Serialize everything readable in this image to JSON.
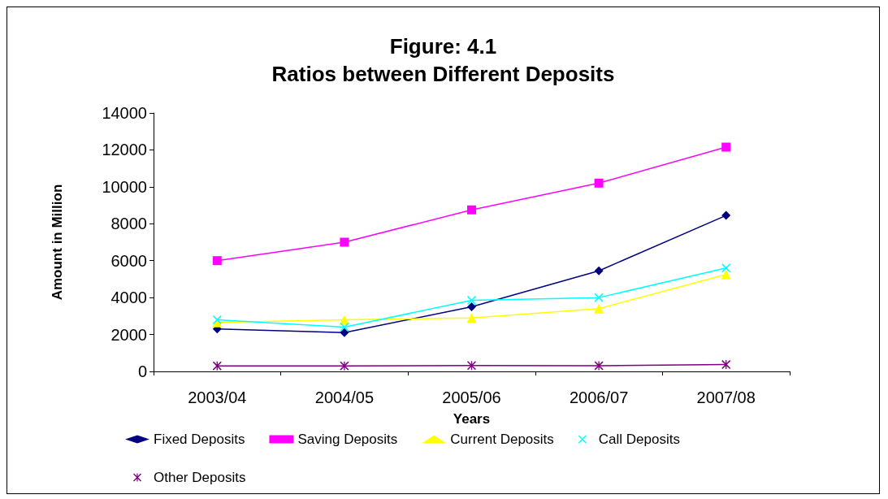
{
  "chart_data": {
    "type": "line",
    "title": "Figure: 4.1",
    "subtitle": "Ratios between Different Deposits",
    "xlabel": "Years",
    "ylabel": "Amount in Million",
    "categories": [
      "2003/04",
      "2004/05",
      "2005/06",
      "2006/07",
      "2007/08"
    ],
    "series": [
      {
        "name": "Fixed Deposits",
        "color": "#000080",
        "marker": "diamond",
        "values": [
          2300,
          2100,
          3500,
          5450,
          8450
        ]
      },
      {
        "name": "Saving Deposits",
        "color": "#ff00ff",
        "marker": "square",
        "values": [
          6000,
          7000,
          8750,
          10200,
          12150
        ]
      },
      {
        "name": "Current Deposits",
        "color": "#ffff00",
        "marker": "triangle",
        "values": [
          2650,
          2800,
          2900,
          3400,
          5250
        ]
      },
      {
        "name": "Call Deposits",
        "color": "#00ffff",
        "marker": "cross",
        "values": [
          2800,
          2400,
          3850,
          4000,
          5600
        ]
      },
      {
        "name": "Other Deposits",
        "color": "#800080",
        "marker": "star",
        "values": [
          300,
          300,
          320,
          310,
          370
        ]
      }
    ],
    "ylim": [
      0,
      14000
    ],
    "yticks": [
      0,
      2000,
      4000,
      6000,
      8000,
      10000,
      12000,
      14000
    ],
    "grid": false,
    "legend": "bottom",
    "line_style": "solid"
  }
}
